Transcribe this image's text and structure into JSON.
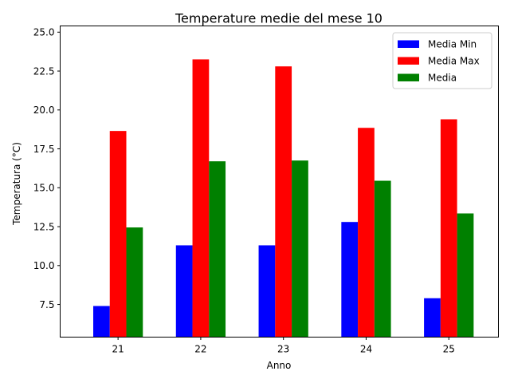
{
  "chart_data": {
    "type": "bar",
    "title": "Temperature medie del mese 10",
    "xlabel": "Anno",
    "ylabel": "Temperatura (°C)",
    "categories": [
      "21",
      "22",
      "23",
      "24",
      "25"
    ],
    "ylim": [
      5.4,
      25.4
    ],
    "yticks": [
      "7.5",
      "10.0",
      "12.5",
      "15.0",
      "17.5",
      "20.0",
      "22.5",
      "25.0"
    ],
    "legend_position": "top-right",
    "grid": false,
    "series": [
      {
        "name": "Media Min",
        "color": "#0000ff",
        "values": [
          7.4,
          11.3,
          11.3,
          12.8,
          7.9
        ]
      },
      {
        "name": "Media Max",
        "color": "#ff0000",
        "values": [
          18.65,
          23.25,
          22.8,
          18.85,
          19.4
        ]
      },
      {
        "name": "Media",
        "color": "#008000",
        "values": [
          12.45,
          16.7,
          16.75,
          15.45,
          13.35
        ]
      }
    ]
  }
}
